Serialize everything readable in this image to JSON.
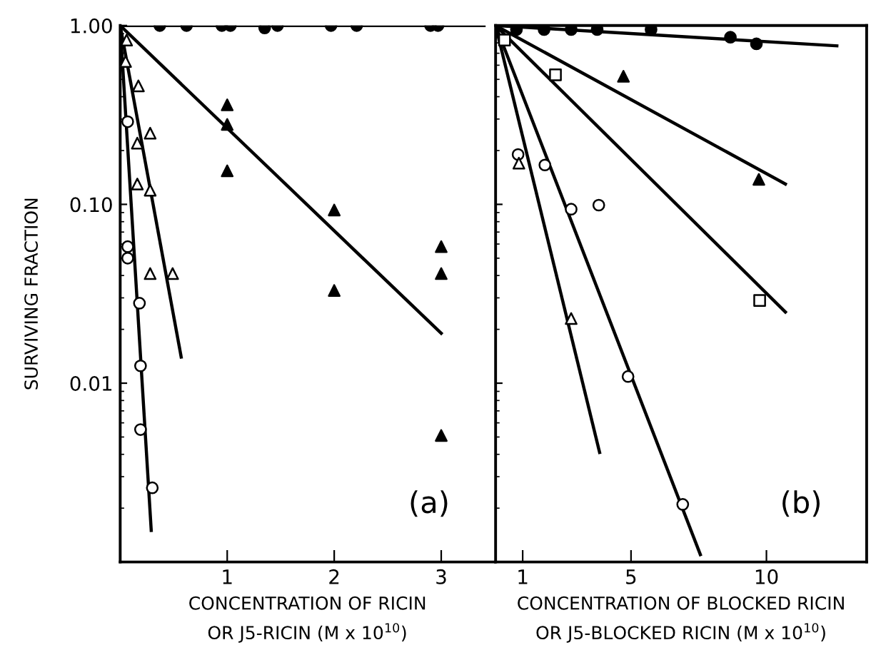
{
  "chart_data": [
    {
      "type": "scatter",
      "ylabel": "SURVIVING FRACTION",
      "xlabel": "CONCENTRATION OF RICIN\nOR J5-RICIN (M x 10$^{10}$)",
      "annotations": [
        "(a)"
      ],
      "log": "y",
      "xlim": [
        0,
        3.5
      ],
      "ylim": [
        0.001,
        1
      ],
      "xticks": [
        1,
        2,
        3
      ],
      "yticks": [
        {
          "value": 1,
          "label": "1.00"
        },
        {
          "value": 0.1,
          "label": "0.10"
        },
        {
          "value": 0.01,
          "label": "0.01"
        }
      ],
      "grid": false,
      "legend": false,
      "tick_labels": "xy",
      "series": [
        {
          "type": "line",
          "color": "#000000",
          "marker": "none",
          "x": [
            0,
            3.4
          ],
          "values": [
            1,
            1
          ]
        },
        {
          "color": "#000000",
          "marker": "circle",
          "x": [
            0.37,
            0.62,
            0.95,
            1.03,
            1.35,
            1.47,
            1.97,
            2.21,
            2.9,
            2.97
          ],
          "values": [
            1,
            1,
            1,
            1,
            0.97,
            1,
            1,
            1,
            1,
            1
          ]
        },
        {
          "type": "line",
          "color": "#000000",
          "marker": "none",
          "x": [
            0,
            3
          ],
          "values": [
            1,
            0.019
          ]
        },
        {
          "color": "#000000",
          "marker": "triangle",
          "x": [
            1,
            1,
            1,
            2,
            2,
            3,
            3,
            3
          ],
          "values": [
            0.36,
            0.28,
            0.154,
            0.093,
            0.033,
            0.058,
            0.041,
            0.0051
          ]
        },
        {
          "type": "line",
          "color": "#000000",
          "marker": "none",
          "x": [
            0,
            0.57
          ],
          "values": [
            1,
            0.014
          ]
        },
        {
          "color": "#ffffff",
          "marker": "triangle",
          "x": [
            0.06,
            0.05,
            0.17,
            0.16,
            0.28,
            0.16,
            0.28,
            0.28,
            0.49
          ],
          "values": [
            0.83,
            0.63,
            0.46,
            0.22,
            0.25,
            0.13,
            0.12,
            0.041,
            0.041
          ]
        },
        {
          "type": "line",
          "color": "#000000",
          "marker": "none",
          "x": [
            0,
            0.29
          ],
          "values": [
            1,
            0.0015
          ]
        },
        {
          "color": "#ffffff",
          "marker": "circle",
          "x": [
            0.07,
            0.07,
            0.07,
            0.18,
            0.19,
            0.19,
            0.3
          ],
          "values": [
            0.29,
            0.058,
            0.05,
            0.028,
            0.0125,
            0.0055,
            0.0026
          ]
        }
      ]
    },
    {
      "type": "scatter",
      "xlabel": "CONCENTRATION OF BLOCKED RICIN\nOR J5-BLOCKED RICIN (M x 10$^{10}$)",
      "annotations": [
        "(b)"
      ],
      "log": "y",
      "xlim": [
        0,
        13.7
      ],
      "ylim": [
        0.001,
        1
      ],
      "xticks": [
        1,
        5,
        10
      ],
      "yticks": [
        {
          "value": 1,
          "label": null
        },
        {
          "value": 0.1,
          "label": null
        },
        {
          "value": 0.01,
          "label": null
        }
      ],
      "grid": false,
      "legend": false,
      "tick_labels": "x",
      "series": [
        {
          "type": "line",
          "color": "#000000",
          "marker": "none",
          "x": [
            0,
            12.6
          ],
          "values": [
            1,
            0.77
          ]
        },
        {
          "color": "#000000",
          "marker": "circle",
          "x": [
            0.77,
            1.79,
            2.79,
            3.75,
            5.74,
            8.67,
            9.63
          ],
          "values": [
            0.95,
            0.95,
            0.95,
            0.95,
            0.95,
            0.86,
            0.79
          ]
        },
        {
          "type": "line",
          "color": "#000000",
          "marker": "none",
          "x": [
            0,
            10.7
          ],
          "values": [
            1,
            0.13
          ]
        },
        {
          "color": "#000000",
          "marker": "triangle",
          "x": [
            4.72,
            9.72
          ],
          "values": [
            0.52,
            0.138
          ]
        },
        {
          "type": "line",
          "color": "#000000",
          "marker": "none",
          "x": [
            0,
            10.7
          ],
          "values": [
            1,
            0.025
          ]
        },
        {
          "color": "#ffffff",
          "marker": "square",
          "x": [
            0.33,
            2.21,
            9.75
          ],
          "values": [
            0.83,
            0.53,
            0.029
          ]
        },
        {
          "type": "line",
          "color": "#000000",
          "marker": "none",
          "x": [
            0,
            7.56
          ],
          "values": [
            1,
            0.0011
          ]
        },
        {
          "color": "#ffffff",
          "marker": "circle",
          "x": [
            0.83,
            1.82,
            2.79,
            3.81,
            4.89,
            6.91
          ],
          "values": [
            0.19,
            0.166,
            0.094,
            0.099,
            0.0109,
            0.0021
          ]
        },
        {
          "type": "line",
          "color": "#000000",
          "marker": "none",
          "x": [
            0,
            3.84
          ],
          "values": [
            1,
            0.0041
          ]
        },
        {
          "color": "#ffffff",
          "marker": "triangle",
          "x": [
            0.86,
            2.79
          ],
          "values": [
            0.17,
            0.023
          ]
        }
      ]
    }
  ]
}
